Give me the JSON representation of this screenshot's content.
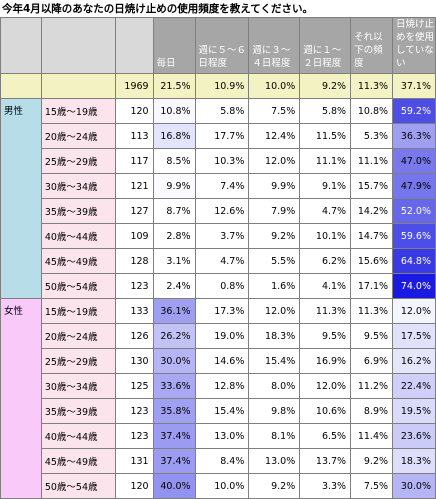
{
  "title": "今年4月以降のあなたの日焼け止めの使用頻度を教えてください。",
  "chart_data": {
    "type": "table",
    "columns": [
      "",
      "",
      "",
      "毎日",
      "週に５～６日程度",
      "週に３～４日程度",
      "週に１～２日程度",
      "それ以下の頻度",
      "日焼け止めを使用していない"
    ],
    "column_labels": {
      "daily": "毎日",
      "w56": "週に５～６日程度",
      "w34": "週に３～４日程度",
      "w12": "週に１～２日程度",
      "less": "それ以下の頻度",
      "none": "日焼け止めを使用していない"
    },
    "total": {
      "n": "1969",
      "values": [
        "21.5%",
        "10.9%",
        "10.0%",
        "9.2%",
        "11.3%",
        "37.1%"
      ]
    },
    "groups": [
      {
        "label": "男性",
        "rows": [
          {
            "age": "15歳～19歳",
            "n": "120",
            "values": [
              "10.8%",
              "5.8%",
              "7.5%",
              "5.8%",
              "10.8%",
              "59.2%"
            ]
          },
          {
            "age": "20歳～24歳",
            "n": "113",
            "values": [
              "16.8%",
              "17.7%",
              "12.4%",
              "11.5%",
              "5.3%",
              "36.3%"
            ]
          },
          {
            "age": "25歳～29歳",
            "n": "117",
            "values": [
              "8.5%",
              "10.3%",
              "12.0%",
              "11.1%",
              "11.1%",
              "47.0%"
            ]
          },
          {
            "age": "30歳～34歳",
            "n": "121",
            "values": [
              "9.9%",
              "7.4%",
              "9.9%",
              "9.1%",
              "15.7%",
              "47.9%"
            ]
          },
          {
            "age": "35歳～39歳",
            "n": "127",
            "values": [
              "8.7%",
              "12.6%",
              "7.9%",
              "4.7%",
              "14.2%",
              "52.0%"
            ]
          },
          {
            "age": "40歳～44歳",
            "n": "109",
            "values": [
              "2.8%",
              "3.7%",
              "9.2%",
              "10.1%",
              "14.7%",
              "59.6%"
            ]
          },
          {
            "age": "45歳～49歳",
            "n": "128",
            "values": [
              "3.1%",
              "4.7%",
              "5.5%",
              "6.2%",
              "15.6%",
              "64.8%"
            ]
          },
          {
            "age": "50歳～54歳",
            "n": "123",
            "values": [
              "2.4%",
              "0.8%",
              "1.6%",
              "4.1%",
              "17.1%",
              "74.0%"
            ]
          }
        ]
      },
      {
        "label": "女性",
        "rows": [
          {
            "age": "15歳～19歳",
            "n": "133",
            "values": [
              "36.1%",
              "17.3%",
              "12.0%",
              "11.3%",
              "11.3%",
              "12.0%"
            ]
          },
          {
            "age": "20歳～24歳",
            "n": "126",
            "values": [
              "26.2%",
              "19.0%",
              "18.3%",
              "9.5%",
              "9.5%",
              "17.5%"
            ]
          },
          {
            "age": "25歳～29歳",
            "n": "130",
            "values": [
              "30.0%",
              "14.6%",
              "15.4%",
              "16.9%",
              "6.9%",
              "16.2%"
            ]
          },
          {
            "age": "30歳～34歳",
            "n": "125",
            "values": [
              "33.6%",
              "12.8%",
              "8.0%",
              "12.0%",
              "11.2%",
              "22.4%"
            ]
          },
          {
            "age": "35歳～39歳",
            "n": "123",
            "values": [
              "35.8%",
              "15.4%",
              "9.8%",
              "10.6%",
              "8.9%",
              "19.5%"
            ]
          },
          {
            "age": "40歳～44歳",
            "n": "123",
            "values": [
              "37.4%",
              "13.0%",
              "8.1%",
              "6.5%",
              "11.4%",
              "23.6%"
            ]
          },
          {
            "age": "45歳～49歳",
            "n": "131",
            "values": [
              "37.4%",
              "8.4%",
              "13.0%",
              "13.7%",
              "9.2%",
              "18.3%"
            ]
          },
          {
            "age": "50歳～54歳",
            "n": "120",
            "values": [
              "40.0%",
              "10.0%",
              "9.2%",
              "3.3%",
              "7.5%",
              "30.0%"
            ]
          }
        ]
      }
    ]
  },
  "colors": {
    "header_bg": "#a6a6a6",
    "total_bg": "#f2f2c2",
    "male_bg": "#b7dee8",
    "female_bg": "#f9c9f9",
    "age_bg": "#fce4ec",
    "heat_low": "#ffffff",
    "heat_high": "#1a1ae0"
  }
}
